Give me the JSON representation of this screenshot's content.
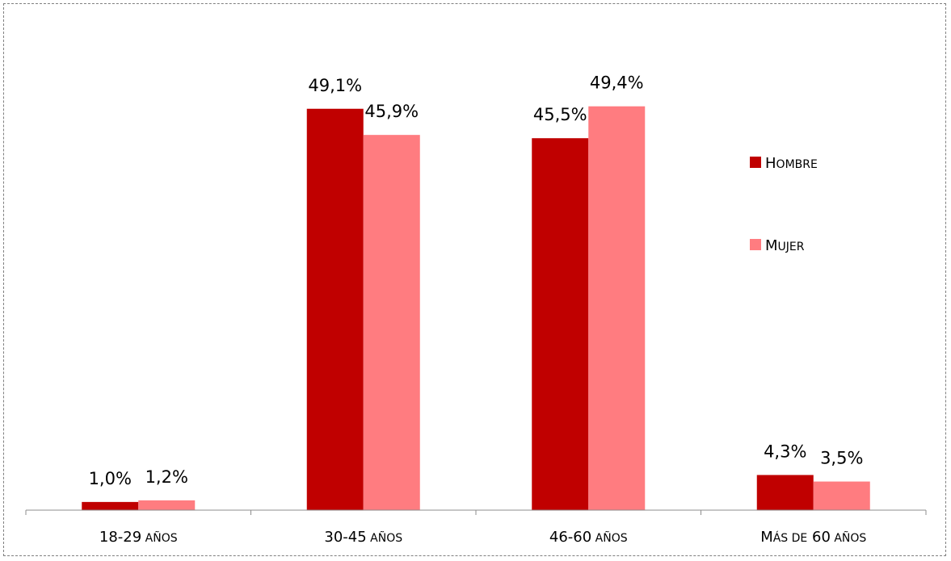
{
  "chart_data": {
    "type": "bar",
    "categories": [
      "18-29 años",
      "30-45 años",
      "46-60 años",
      "Más de 60 años"
    ],
    "series": [
      {
        "name": "Hombre",
        "values": [
          1.0,
          49.1,
          45.5,
          4.3
        ],
        "labels": [
          "1,0%",
          "49,1%",
          "45,5%",
          "4,3%"
        ],
        "color": "#C00000"
      },
      {
        "name": "Mujer",
        "values": [
          1.2,
          45.9,
          49.4,
          3.5
        ],
        "labels": [
          "1,2%",
          "45,9%",
          "49,4%",
          "3,5%"
        ],
        "color": "#FF7C80"
      }
    ],
    "ylim": [
      0,
      55
    ],
    "grid": false,
    "legend_position": "right"
  }
}
